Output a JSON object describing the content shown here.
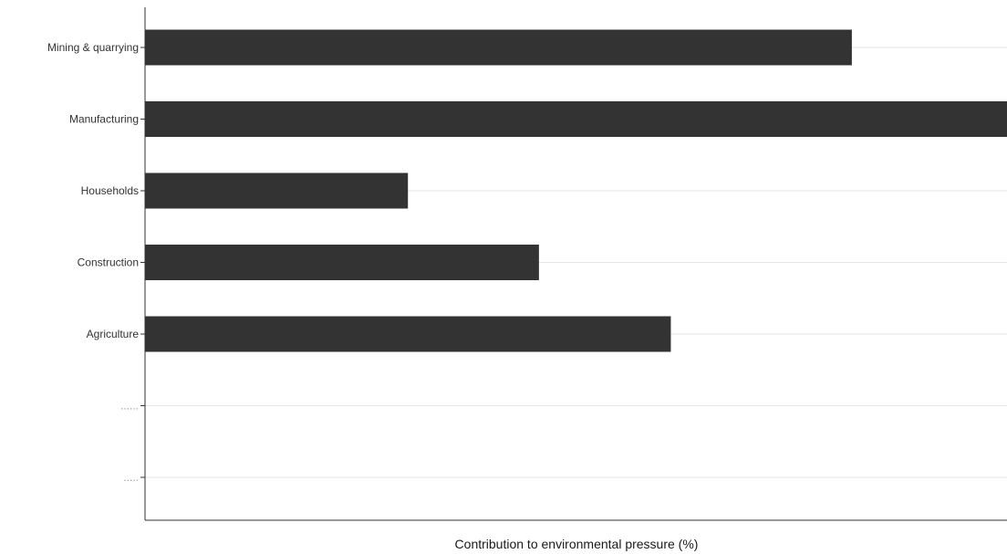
{
  "chart_data": {
    "type": "bar",
    "orientation": "horizontal",
    "categories": [
      "Mining  & quarrying",
      "Manufacturing",
      "Households",
      "Construction",
      "Agriculture",
      "......",
      "....."
    ],
    "values": [
      82,
      100,
      30.5,
      45.7,
      61,
      null,
      null
    ],
    "title": "",
    "xlabel": "Contribution to environmental pressure (%)",
    "ylabel": "",
    "xlim": [
      0,
      100
    ],
    "grid": "horizontal",
    "legend": "none",
    "colors": {
      "bar": "#333333",
      "grid": "#e5e5e5",
      "axis": "#333333",
      "placeholder_label": "#999999"
    }
  }
}
